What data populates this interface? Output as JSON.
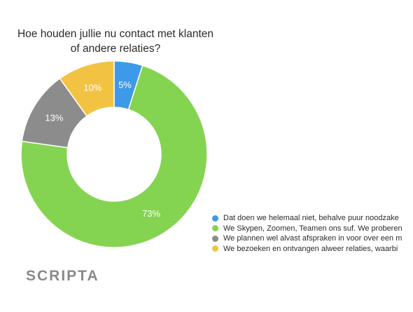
{
  "title_lines": [
    "Hoe houden jullie nu contact met klanten",
    "of andere relaties?"
  ],
  "chart_data": {
    "type": "pie",
    "title": "Hoe houden jullie nu contact met klanten of andere relaties?",
    "donut": true,
    "series": [
      {
        "name": "Dat doen we helemaal niet, behalve puur noodzake",
        "value": 5,
        "label": "5%",
        "color": "#3d9ae8"
      },
      {
        "name": "We Skypen, Zoomen, Teamen ons suf. We proberen",
        "value": 73,
        "label": "73%",
        "color": "#84d451"
      },
      {
        "name": "We plannen wel alvast afspraken in voor over een m",
        "value": 13,
        "label": "13%",
        "color": "#8c8c8c"
      },
      {
        "name": "We bezoeken en ontvangen alweer relaties, waarbi",
        "value": 10,
        "label": "10%",
        "color": "#f2c343"
      }
    ],
    "legend_position": "bottom-right"
  },
  "brand": {
    "logo_text": "SCRIPTA"
  }
}
